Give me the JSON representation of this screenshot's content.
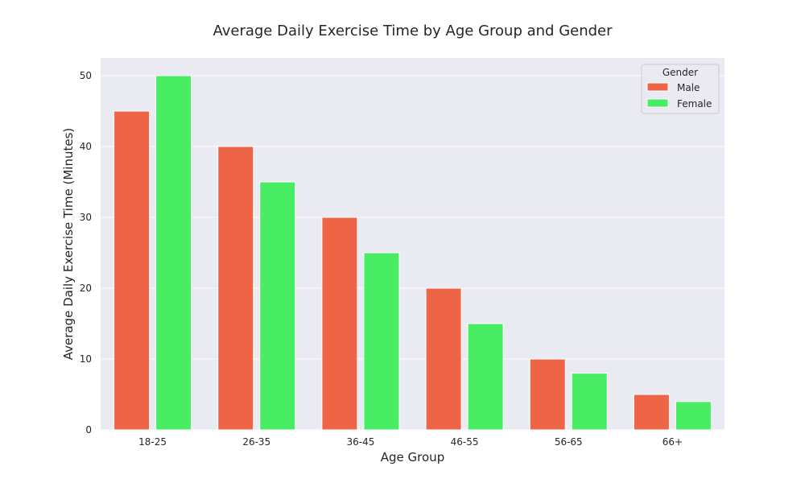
{
  "chart_data": {
    "type": "bar",
    "title": "Average Daily Exercise Time by Age Group and Gender",
    "xlabel": "Age Group",
    "ylabel": "Average Daily Exercise Time (Minutes)",
    "categories": [
      "18-25",
      "26-35",
      "36-45",
      "46-55",
      "56-65",
      "66+"
    ],
    "series": [
      {
        "name": "Male",
        "color": "#ee6446",
        "values": [
          45,
          40,
          30,
          20,
          10,
          5
        ]
      },
      {
        "name": "Female",
        "color": "#48ed64",
        "values": [
          50,
          35,
          25,
          15,
          8,
          4
        ]
      }
    ],
    "ylim": [
      0,
      52.5
    ],
    "yticks": [
      0,
      10,
      20,
      30,
      40,
      50
    ],
    "grid": true,
    "legend": {
      "title": "Gender",
      "placement": "top-right"
    },
    "background_color": "#eaeaf2",
    "grid_color": "#ffffff"
  }
}
